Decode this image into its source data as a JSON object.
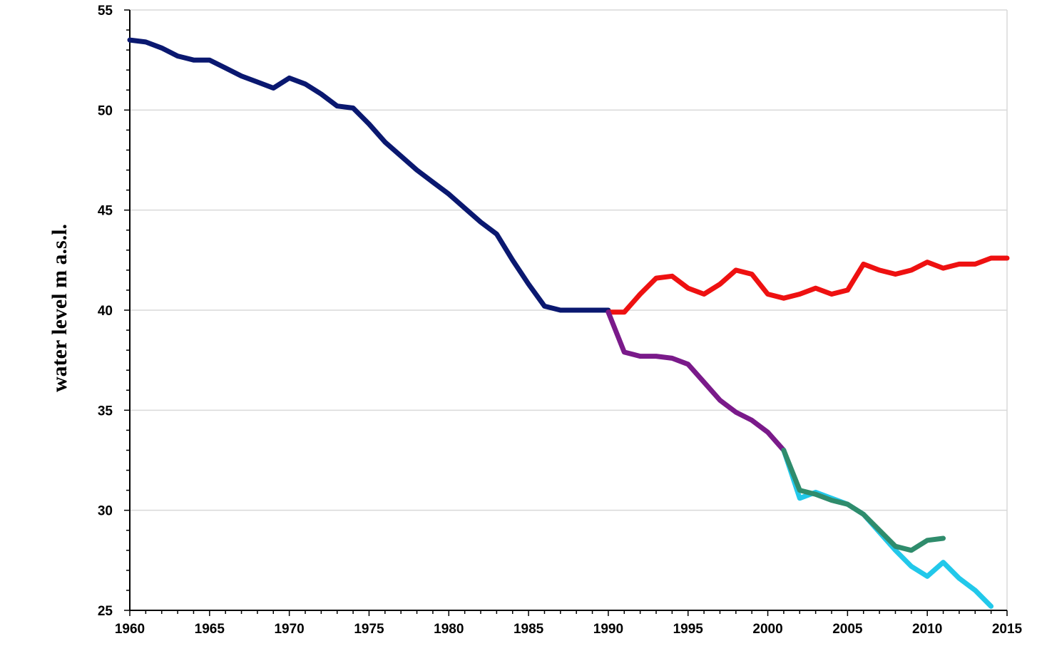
{
  "chart_data": {
    "type": "line",
    "title": "",
    "xlabel": "",
    "ylabel": "water level m a.s.l.",
    "xlim": [
      1960,
      2015
    ],
    "ylim": [
      25,
      55
    ],
    "x_ticks": [
      1960,
      1965,
      1970,
      1975,
      1980,
      1985,
      1990,
      1995,
      2000,
      2005,
      2010,
      2015
    ],
    "y_ticks": [
      25,
      30,
      35,
      40,
      45,
      50,
      55
    ],
    "grid": "horizontal",
    "legend": "none",
    "series": [
      {
        "color": "#0a1870",
        "x": [
          1960,
          1961,
          1962,
          1963,
          1964,
          1965,
          1966,
          1967,
          1968,
          1969,
          1970,
          1971,
          1972,
          1973,
          1974,
          1975,
          1976,
          1977,
          1978,
          1979,
          1980,
          1981,
          1982,
          1983,
          1984,
          1985,
          1986,
          1987,
          1988,
          1989,
          1990
        ],
        "y": [
          53.5,
          53.4,
          53.1,
          52.7,
          52.5,
          52.5,
          52.1,
          51.7,
          51.4,
          51.1,
          51.6,
          51.3,
          50.8,
          50.2,
          50.1,
          49.3,
          48.4,
          47.7,
          47.0,
          46.4,
          45.8,
          45.1,
          44.4,
          43.8,
          42.5,
          41.3,
          40.2,
          40.0,
          40.0,
          40.0,
          40.0
        ]
      },
      {
        "color": "#ee1111",
        "x": [
          1990,
          1991,
          1992,
          1993,
          1994,
          1995,
          1996,
          1997,
          1998,
          1999,
          2000,
          2001,
          2002,
          2003,
          2004,
          2005,
          2006,
          2007,
          2008,
          2009,
          2010,
          2011,
          2012,
          2013,
          2014,
          2015
        ],
        "y": [
          39.9,
          39.9,
          40.8,
          41.6,
          41.7,
          41.1,
          40.8,
          41.3,
          42.0,
          41.8,
          40.8,
          40.6,
          40.8,
          41.1,
          40.8,
          41.0,
          42.3,
          42.0,
          41.8,
          42.0,
          42.4,
          42.1,
          42.3,
          42.3,
          42.6,
          42.6
        ]
      },
      {
        "color": "#7a1a8a",
        "x": [
          1990,
          1991,
          1992,
          1993,
          1994,
          1995,
          1996,
          1997,
          1998,
          1999,
          2000,
          2001
        ],
        "y": [
          39.9,
          37.9,
          37.7,
          37.7,
          37.6,
          37.3,
          36.4,
          35.5,
          34.9,
          34.5,
          33.9,
          33.0
        ]
      },
      {
        "color": "#22c8ea",
        "x": [
          2001,
          2002,
          2003,
          2004,
          2005,
          2006,
          2007,
          2008,
          2009,
          2010,
          2011,
          2012,
          2013,
          2014
        ],
        "y": [
          33.0,
          30.6,
          30.9,
          30.6,
          30.3,
          29.8,
          28.9,
          28.0,
          27.2,
          26.7,
          27.4,
          26.6,
          26.0,
          25.2
        ]
      },
      {
        "color": "#2f8c6c",
        "x": [
          2001,
          2002,
          2003,
          2004,
          2005,
          2006,
          2007,
          2008,
          2009,
          2010,
          2011
        ],
        "y": [
          33.0,
          31.0,
          30.8,
          30.5,
          30.3,
          29.8,
          29.0,
          28.2,
          28.0,
          28.5,
          28.6
        ]
      }
    ]
  }
}
